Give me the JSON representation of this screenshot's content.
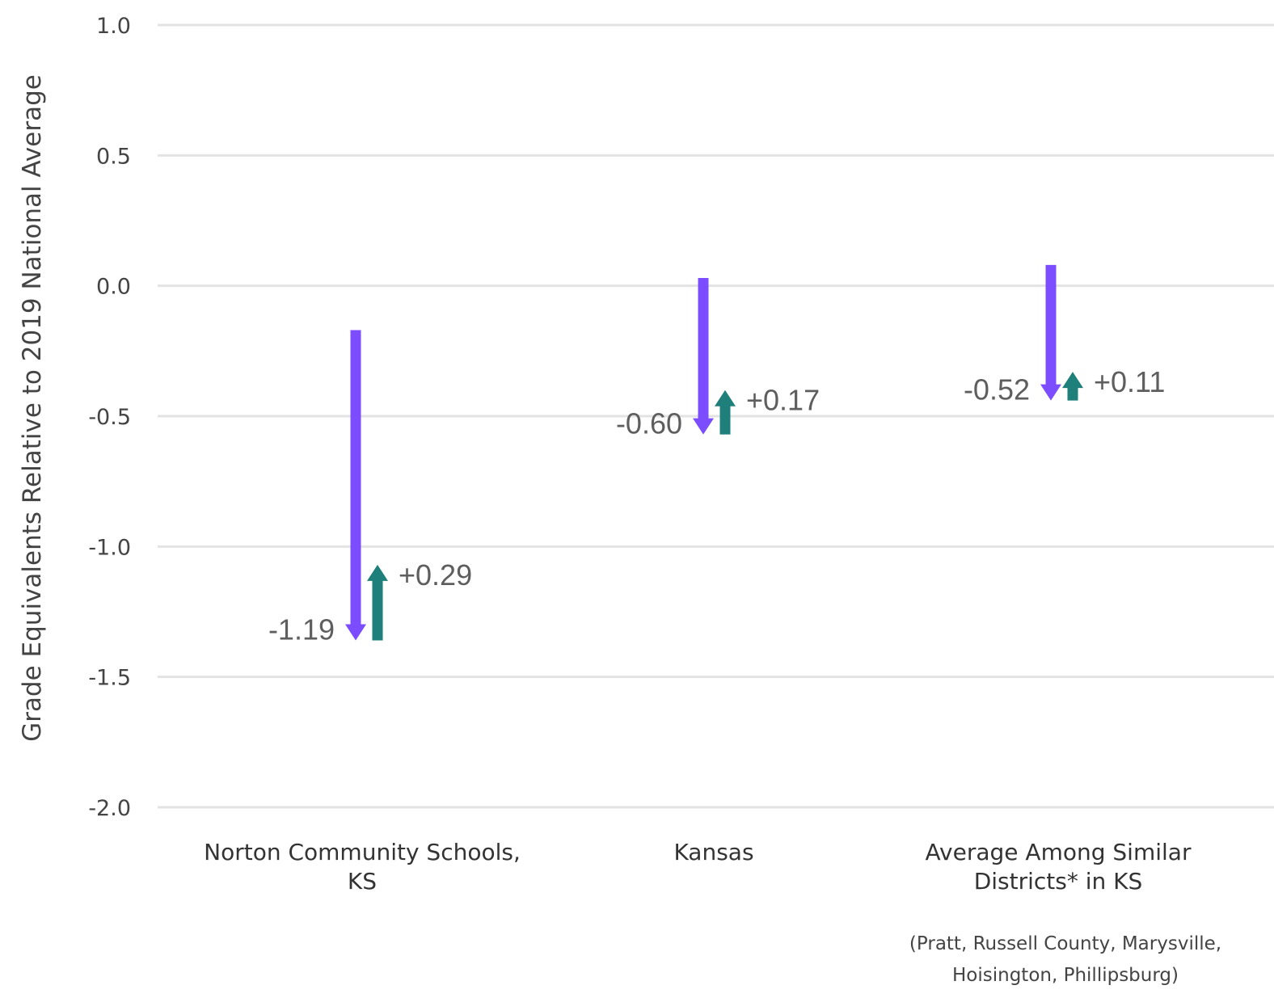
{
  "chart_data": {
    "type": "arrow",
    "ylabel": "Grade Equivalents Relative to 2019 National Average",
    "ylim": [
      -2.0,
      1.0
    ],
    "yticks": [
      {
        "value": 1.0,
        "label": "1.0"
      },
      {
        "value": 0.5,
        "label": "0.5"
      },
      {
        "value": 0.0,
        "label": "0.0"
      },
      {
        "value": -0.5,
        "label": "-0.5"
      },
      {
        "value": -1.0,
        "label": "-1.0"
      },
      {
        "value": -1.5,
        "label": "-1.5"
      },
      {
        "value": -2.0,
        "label": "-2.0"
      }
    ],
    "grid": true,
    "categories": [
      {
        "lines": [
          "Norton Community Schools,",
          "KS"
        ],
        "note": []
      },
      {
        "lines": [
          "Kansas"
        ],
        "note": []
      },
      {
        "lines": [
          "Average Among Similar",
          "Districts* in KS"
        ],
        "note": [
          "(Pratt, Russell County, Marysville,",
          "Hoisington, Phillipsburg)"
        ]
      }
    ],
    "declines": [
      {
        "start": -0.17,
        "end": -1.36,
        "label": "-1.19"
      },
      {
        "start": 0.03,
        "end": -0.57,
        "label": "-0.60"
      },
      {
        "start": 0.08,
        "end": -0.44,
        "label": "-0.52"
      }
    ],
    "recoveries": [
      {
        "start": -1.36,
        "end": -1.07,
        "label": "+0.29"
      },
      {
        "start": -0.57,
        "end": -0.4,
        "label": "+0.17"
      },
      {
        "start": -0.44,
        "end": -0.33,
        "label": "+0.11"
      }
    ],
    "colors": {
      "decline": "#7c4dff",
      "recovery": "#1f7f7a",
      "grid": "#e3e3e3"
    }
  }
}
